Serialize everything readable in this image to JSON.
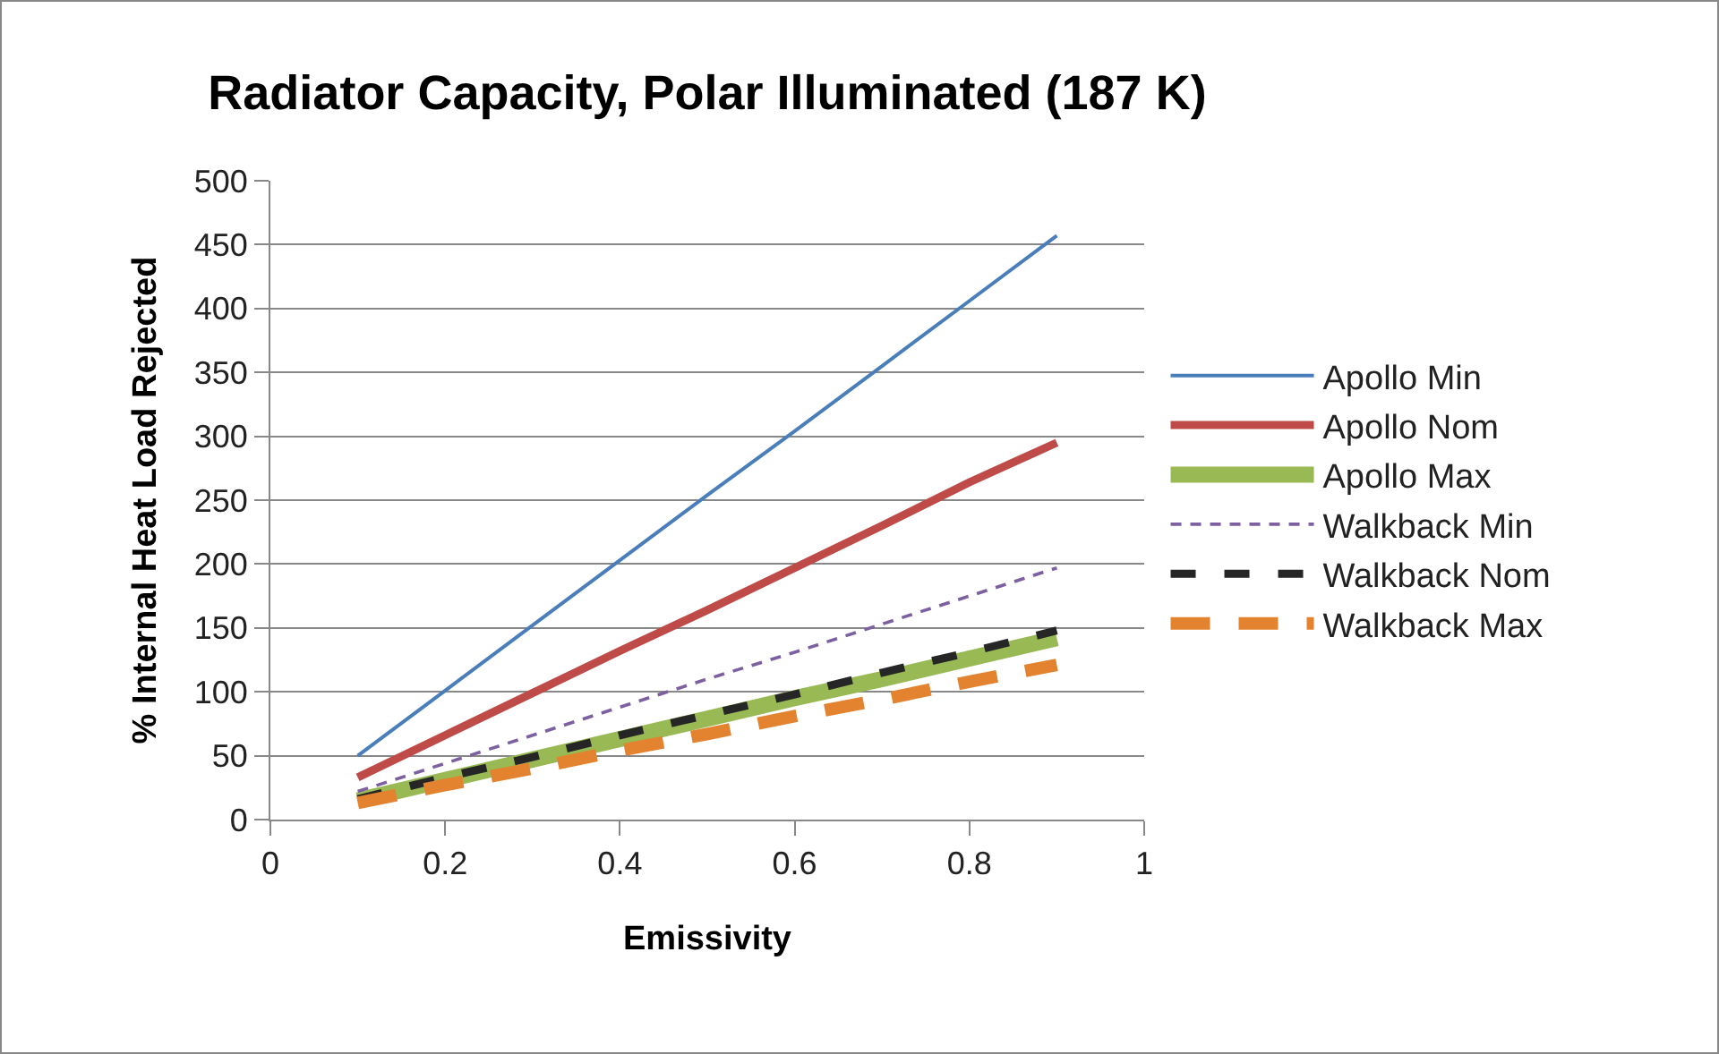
{
  "chart_data": {
    "type": "line",
    "title": "Radiator Capacity, Polar Illuminated (187 K)",
    "xlabel": "Emissivity",
    "ylabel": "% Internal Heat Load Rejected",
    "x": [
      0.1,
      0.2,
      0.3,
      0.4,
      0.5,
      0.6,
      0.7,
      0.8,
      0.9
    ],
    "series": [
      {
        "name": "Apollo Min",
        "color": "#4a7ebb",
        "line_style": "solid",
        "values": [
          50,
          101,
          152,
          203,
          254,
          304,
          355,
          406,
          457
        ]
      },
      {
        "name": "Apollo Nom",
        "color": "#be4b48",
        "line_style": "solid",
        "values": [
          33,
          66,
          99,
          132,
          164,
          197,
          230,
          264,
          295
        ]
      },
      {
        "name": "Apollo Max",
        "color": "#98b954",
        "line_style": "solid",
        "values": [
          15,
          31,
          47,
          63,
          79,
          95,
          110,
          126,
          142
        ]
      },
      {
        "name": "Walkback Min",
        "color": "#7d60a0",
        "line_style": "dashed",
        "values": [
          22,
          44,
          66,
          88,
          110,
          131,
          153,
          175,
          197
        ]
      },
      {
        "name": "Walkback Nom",
        "color": "#262626",
        "line_style": "dashed",
        "values": [
          16,
          33,
          49,
          66,
          82,
          98,
          115,
          131,
          148
        ]
      },
      {
        "name": "Walkback Max",
        "color": "#e3822f",
        "line_style": "dashed",
        "values": [
          13,
          27,
          40,
          54,
          67,
          81,
          94,
          108,
          121
        ]
      }
    ],
    "xlim": [
      0,
      1
    ],
    "xticks": [
      0,
      0.2,
      0.4,
      0.6,
      0.8,
      1
    ],
    "ylim": [
      0,
      500
    ],
    "yticks": [
      0,
      50,
      100,
      150,
      200,
      250,
      300,
      350,
      400,
      450,
      500
    ],
    "grid": "y",
    "legend": "right",
    "marker": "none"
  }
}
